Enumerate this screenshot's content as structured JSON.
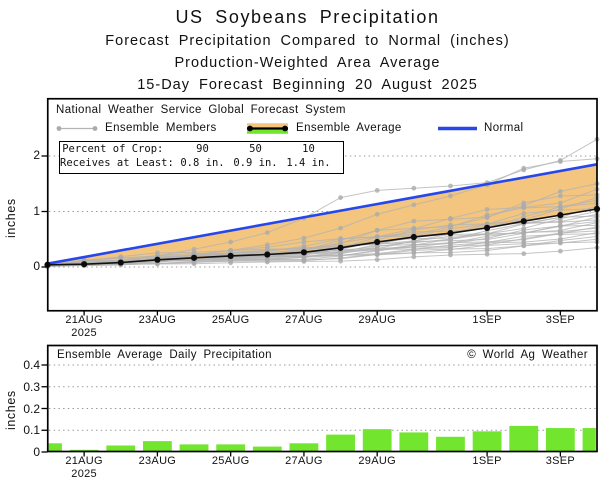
{
  "title": {
    "line1": "US Soybeans Precipitation",
    "line2": "Forecast Precipitation Compared to Normal (inches)",
    "line3": "Production-Weighted Area Average",
    "line4": "15-Day Forecast Beginning 20 August 2025"
  },
  "main_chart": {
    "source_label": "National Weather Service Global Forecast System",
    "legend": {
      "ensemble_members": "Ensemble Members",
      "ensemble_average": "Ensemble Average",
      "normal": "Normal"
    },
    "crop_box": {
      "row1_label": "Percent of Crop:  ",
      "row1_values": [
        "90",
        "50",
        "10"
      ],
      "row2_label": "Receives at Least:  ",
      "row2_values": [
        "0.8 in.",
        "0.9 in.",
        "1.4 in."
      ]
    },
    "ylabel": "inches"
  },
  "bottom_chart": {
    "title": "Ensemble Average Daily Precipitation",
    "watermark": "© World Ag Weather",
    "ylabel": "inches"
  },
  "chart_data": [
    {
      "type": "line",
      "description": "Cumulative forecast precipitation, 20AUG2025 through 4SEP2025 (day index 0-15)",
      "ylabel": "inches",
      "y_ticks": [
        0,
        1,
        2
      ],
      "ylim": [
        -0.79,
        3.04
      ],
      "xlim_days": [
        0,
        15
      ],
      "x_tick_labels": [
        {
          "day": 1,
          "label": "21AUG",
          "sublabel": "2025"
        },
        {
          "day": 3,
          "label": "23AUG"
        },
        {
          "day": 5,
          "label": "25AUG"
        },
        {
          "day": 7,
          "label": "27AUG"
        },
        {
          "day": 9,
          "label": "29AUG"
        },
        {
          "day": 12,
          "label": "1SEP"
        },
        {
          "day": 14,
          "label": "3SEP"
        }
      ],
      "normal": {
        "label": "Normal",
        "color": "#2547eb",
        "x_days": [
          0,
          15
        ],
        "values": [
          0.06,
          1.85
        ]
      },
      "ensemble_average": {
        "label": "Ensemble Average",
        "color": "#111111",
        "values": [
          0.04,
          0.05,
          0.08,
          0.13,
          0.165,
          0.2,
          0.225,
          0.265,
          0.345,
          0.45,
          0.54,
          0.61,
          0.705,
          0.825,
          0.935,
          1.045
        ]
      },
      "deficit_fill_color": "#f3c57e",
      "surplus_fill_color": "#72e62e",
      "members_color": "#b4b4b4",
      "members_base_shape": [
        0,
        0.048,
        0.077,
        0.124,
        0.158,
        0.191,
        0.215,
        0.254,
        0.33,
        0.431,
        0.517,
        0.584,
        0.675,
        0.789,
        0.895,
        1
      ],
      "members_final_values": [
        0.35,
        0.45,
        0.5,
        0.55,
        0.6,
        0.62,
        0.65,
        0.7,
        0.72,
        0.75,
        0.8,
        0.82,
        0.85,
        0.9,
        0.92,
        0.95,
        1.0,
        1.05,
        1.1,
        1.15,
        1.2,
        1.25,
        1.3,
        1.4,
        1.5
      ],
      "members_explicit": [
        [
          0.02,
          0.06,
          0.12,
          0.2,
          0.32,
          0.45,
          0.62,
          0.88,
          1.25,
          1.38,
          1.42,
          1.46,
          1.52,
          1.75,
          1.92,
          2.3
        ],
        [
          0.03,
          0.07,
          0.1,
          0.15,
          0.22,
          0.3,
          0.4,
          0.52,
          0.7,
          0.95,
          1.12,
          1.28,
          1.48,
          1.78,
          1.9,
          1.95
        ]
      ]
    },
    {
      "type": "bar",
      "title": "Ensemble Average Daily Precipitation",
      "ylabel": "inches",
      "y_ticks": [
        0,
        0.1,
        0.2,
        0.3,
        0.4
      ],
      "ylim": [
        0,
        0.49
      ],
      "bar_color": "#72e62e",
      "values": [
        0.04,
        0.01,
        0.03,
        0.05,
        0.035,
        0.035,
        0.025,
        0.04,
        0.08,
        0.105,
        0.09,
        0.07,
        0.095,
        0.12,
        0.11,
        0.11
      ],
      "x_tick_labels": [
        {
          "day": 1,
          "label": "21AUG",
          "sublabel": "2025"
        },
        {
          "day": 3,
          "label": "23AUG"
        },
        {
          "day": 5,
          "label": "25AUG"
        },
        {
          "day": 7,
          "label": "27AUG"
        },
        {
          "day": 9,
          "label": "29AUG"
        },
        {
          "day": 12,
          "label": "1SEP"
        },
        {
          "day": 14,
          "label": "3SEP"
        }
      ]
    }
  ]
}
